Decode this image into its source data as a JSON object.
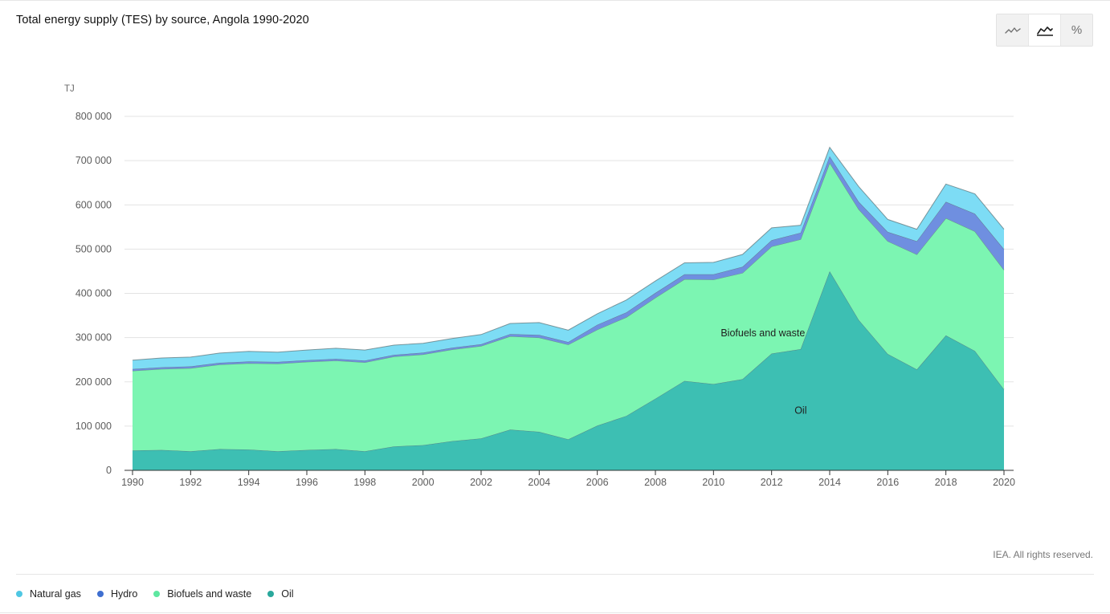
{
  "header": {
    "title": "Total energy supply (TES) by source, Angola 1990-2020"
  },
  "toggles": [
    {
      "icon": "line-chart-icon",
      "active": false
    },
    {
      "icon": "area-chart-icon",
      "active": true
    },
    {
      "icon": "percent-icon",
      "label": "%",
      "active": false
    }
  ],
  "footer": {
    "rights": "IEA. All rights reserved."
  },
  "colors": {
    "natural_gas": "#7ddcf5",
    "hydro": "#6f8fe0",
    "biofuels": "#7cf5b2",
    "oil": "#3dbfb3"
  },
  "chart_data": {
    "type": "area",
    "stacked": true,
    "title": "Total energy supply (TES) by source, Angola 1990-2020",
    "ylabel": "TJ",
    "ylim": [
      0,
      800000
    ],
    "yticks": [
      0,
      100000,
      200000,
      300000,
      400000,
      500000,
      600000,
      700000,
      800000
    ],
    "ytick_labels": [
      "0",
      "100 000",
      "200 000",
      "300 000",
      "400 000",
      "500 000",
      "600 000",
      "700 000",
      "800 000"
    ],
    "xticks": [
      "1990",
      "1992",
      "1994",
      "1996",
      "1998",
      "2000",
      "2002",
      "2004",
      "2006",
      "2008",
      "2010",
      "2012",
      "2014",
      "2016",
      "2018",
      "2020"
    ],
    "grid": true,
    "x": [
      1990,
      1991,
      1992,
      1993,
      1994,
      1995,
      1996,
      1997,
      1998,
      1999,
      2000,
      2001,
      2002,
      2003,
      2004,
      2005,
      2006,
      2007,
      2008,
      2009,
      2010,
      2011,
      2012,
      2013,
      2014,
      2015,
      2016,
      2017,
      2018,
      2019,
      2020
    ],
    "series": [
      {
        "name": "Oil",
        "key": "oil",
        "values": [
          45000,
          46000,
          43000,
          48000,
          47000,
          43000,
          46000,
          48000,
          43000,
          54000,
          57000,
          66000,
          72000,
          92000,
          87000,
          70000,
          101000,
          123000,
          162000,
          202000,
          195000,
          206000,
          264000,
          274000,
          450000,
          340000,
          263000,
          228000,
          305000,
          270000,
          183000
        ]
      },
      {
        "name": "Biofuels and waste",
        "key": "biofuels",
        "values": [
          180000,
          183000,
          188000,
          191000,
          195000,
          198000,
          199000,
          200000,
          201000,
          203000,
          205000,
          207000,
          209000,
          211000,
          213000,
          214000,
          217000,
          223000,
          228000,
          230000,
          236000,
          240000,
          242000,
          248000,
          245000,
          250000,
          255000,
          260000,
          265000,
          270000,
          270000
        ]
      },
      {
        "name": "Hydro",
        "key": "hydro",
        "values": [
          4000,
          4000,
          4000,
          4000,
          4000,
          4000,
          4000,
          4000,
          4000,
          4000,
          4000,
          4000,
          4000,
          5000,
          6000,
          6000,
          11000,
          11000,
          11000,
          11000,
          12000,
          14000,
          14000,
          15000,
          15000,
          17000,
          21000,
          30000,
          37000,
          40000,
          47000
        ]
      },
      {
        "name": "Natural gas",
        "key": "natural_gas",
        "values": [
          20000,
          21000,
          21000,
          22000,
          23000,
          22000,
          23000,
          24000,
          24000,
          22000,
          21000,
          21000,
          22000,
          24000,
          28000,
          27000,
          25000,
          28000,
          27000,
          26000,
          27000,
          28000,
          28000,
          17000,
          20000,
          34000,
          28000,
          27000,
          40000,
          45000,
          45000
        ]
      }
    ],
    "annotations": [
      {
        "text": "Biofuels and waste",
        "x": 2011.7,
        "y": 310000
      },
      {
        "text": "Oil",
        "x": 2013,
        "y": 135000
      }
    ],
    "legend": {
      "placement": "bottom-left",
      "items": [
        {
          "label": "Natural gas",
          "color": "#4fc7e3"
        },
        {
          "label": "Hydro",
          "color": "#3f6fd0"
        },
        {
          "label": "Biofuels and waste",
          "color": "#5ee7a0"
        },
        {
          "label": "Oil",
          "color": "#2aa89c"
        }
      ]
    }
  }
}
